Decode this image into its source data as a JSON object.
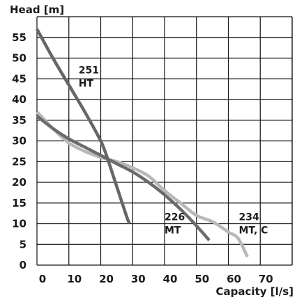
{
  "chart_data": {
    "type": "line",
    "title": "",
    "xlabel": "Capacity [l/s]",
    "ylabel": "Head [m]",
    "xlim": [
      0,
      80
    ],
    "ylim": [
      0,
      55
    ],
    "x_ticks": [
      "0",
      "10",
      "20",
      "30",
      "40",
      "50",
      "60",
      "70"
    ],
    "y_ticks": [
      "0",
      "5",
      "10",
      "15",
      "20",
      "25",
      "30",
      "35",
      "40",
      "45",
      "50",
      "55"
    ],
    "grid": true,
    "series": [
      {
        "label_lines": [
          "251",
          "HT"
        ],
        "color": "#666666",
        "x": [
          0,
          5,
          10,
          15,
          20,
          22,
          25,
          28,
          29
        ],
        "y": [
          57,
          50,
          43.5,
          37,
          30,
          26,
          19,
          12,
          10
        ]
      },
      {
        "label_lines": [
          "226",
          "MT"
        ],
        "color": "#6b6b6b",
        "x": [
          0,
          5,
          10,
          15,
          20,
          25,
          30,
          35,
          40,
          45,
          50,
          54
        ],
        "y": [
          36,
          33,
          30.5,
          28.5,
          26.5,
          24.5,
          22.5,
          20,
          17,
          13.5,
          9.5,
          6
        ]
      },
      {
        "label_lines": [
          "234",
          "MT, C"
        ],
        "color": "#b8b8b8",
        "x": [
          0,
          5,
          10,
          15,
          20,
          25,
          30,
          35,
          40,
          45,
          50,
          55,
          60,
          63,
          66
        ],
        "y": [
          37,
          33,
          29.5,
          27.5,
          26,
          25,
          23.5,
          21.5,
          18,
          15,
          12,
          10.5,
          8,
          6.5,
          2
        ]
      }
    ]
  }
}
